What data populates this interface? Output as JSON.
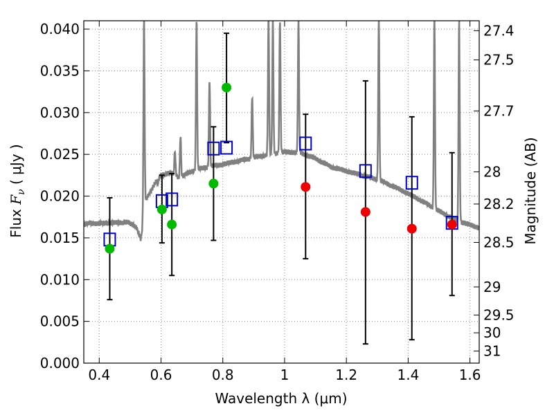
{
  "chart_data": {
    "type": "scatter",
    "xlabel": "Wavelength  λ (μm)",
    "ylabel_left_prefix": "Flux ",
    "ylabel_left_symbol": "F",
    "ylabel_left_sub": "ν",
    "ylabel_left_unit": " ( μJy )",
    "ylabel_right": "Magnitude (AB)",
    "xlim": [
      0.35,
      1.63
    ],
    "ylim": [
      0.0,
      0.041
    ],
    "grid": true,
    "x_ticks": [
      {
        "value": 0.4,
        "label": "0.4"
      },
      {
        "value": 0.6,
        "label": "0.6"
      },
      {
        "value": 0.8,
        "label": "0.8"
      },
      {
        "value": 1.0,
        "label": "1"
      },
      {
        "value": 1.2,
        "label": "1.2"
      },
      {
        "value": 1.4,
        "label": "1.4"
      },
      {
        "value": 1.6,
        "label": "1.6"
      }
    ],
    "y_ticks": [
      {
        "value": 0.0,
        "label": "0.000"
      },
      {
        "value": 0.005,
        "label": "0.005"
      },
      {
        "value": 0.01,
        "label": "0.010"
      },
      {
        "value": 0.015,
        "label": "0.015"
      },
      {
        "value": 0.02,
        "label": "0.020"
      },
      {
        "value": 0.025,
        "label": "0.025"
      },
      {
        "value": 0.03,
        "label": "0.030"
      },
      {
        "value": 0.035,
        "label": "0.035"
      },
      {
        "value": 0.04,
        "label": "0.040"
      }
    ],
    "mag_ticks": [
      {
        "mag": 27.4,
        "label": "27.4"
      },
      {
        "mag": 27.5,
        "label": "27.5"
      },
      {
        "mag": 27.7,
        "label": "27.7"
      },
      {
        "mag": 28.0,
        "label": "28"
      },
      {
        "mag": 28.2,
        "label": "28.2"
      },
      {
        "mag": 28.5,
        "label": "28.5"
      },
      {
        "mag": 29.0,
        "label": "29"
      },
      {
        "mag": 29.5,
        "label": "29.5"
      },
      {
        "mag": 30.0,
        "label": "30"
      },
      {
        "mag": 31.0,
        "label": "31"
      }
    ],
    "colors": {
      "spectrum": "#808080",
      "model": "#0000cc",
      "green": "#00bb00",
      "red": "#ee0000",
      "errorbar": "#000000",
      "grid": "#888888"
    },
    "spectrum": {
      "continuum": [
        [
          0.35,
          0.0165
        ],
        [
          0.37,
          0.0168
        ],
        [
          0.4,
          0.0167
        ],
        [
          0.43,
          0.0168
        ],
        [
          0.46,
          0.0168
        ],
        [
          0.49,
          0.0169
        ],
        [
          0.52,
          0.0163
        ],
        [
          0.535,
          0.0148
        ],
        [
          0.55,
          0.0195
        ],
        [
          0.58,
          0.0215
        ],
        [
          0.6,
          0.0225
        ],
        [
          0.63,
          0.0228
        ],
        [
          0.66,
          0.0222
        ],
        [
          0.7,
          0.023
        ],
        [
          0.75,
          0.0235
        ],
        [
          0.8,
          0.0238
        ],
        [
          0.85,
          0.0242
        ],
        [
          0.9,
          0.0246
        ],
        [
          0.95,
          0.025
        ],
        [
          1.0,
          0.0253
        ],
        [
          1.05,
          0.0252
        ],
        [
          1.1,
          0.0245
        ],
        [
          1.15,
          0.0235
        ],
        [
          1.2,
          0.023
        ],
        [
          1.25,
          0.0225
        ],
        [
          1.3,
          0.022
        ],
        [
          1.35,
          0.0212
        ],
        [
          1.4,
          0.0203
        ],
        [
          1.45,
          0.0193
        ],
        [
          1.5,
          0.0182
        ],
        [
          1.55,
          0.0172
        ],
        [
          1.58,
          0.0168
        ],
        [
          1.63,
          0.0162
        ]
      ],
      "lines": [
        {
          "x": 0.545,
          "peak": 0.0412
        },
        {
          "x": 0.59,
          "peak": 0.0215
        },
        {
          "x": 0.645,
          "peak": 0.0255
        },
        {
          "x": 0.663,
          "peak": 0.0272
        },
        {
          "x": 0.715,
          "peak": 0.0412
        },
        {
          "x": 0.757,
          "peak": 0.034
        },
        {
          "x": 0.895,
          "peak": 0.032
        },
        {
          "x": 0.948,
          "peak": 0.0412
        },
        {
          "x": 0.962,
          "peak": 0.0412
        },
        {
          "x": 0.985,
          "peak": 0.0412
        },
        {
          "x": 1.045,
          "peak": 0.0412
        },
        {
          "x": 1.305,
          "peak": 0.0412
        },
        {
          "x": 1.485,
          "peak": 0.0412
        },
        {
          "x": 1.565,
          "peak": 0.0412
        }
      ]
    },
    "model_squares": [
      {
        "x": 0.434,
        "y": 0.0148
      },
      {
        "x": 0.603,
        "y": 0.0194
      },
      {
        "x": 0.635,
        "y": 0.0196
      },
      {
        "x": 0.77,
        "y": 0.0257
      },
      {
        "x": 0.812,
        "y": 0.0258
      },
      {
        "x": 1.068,
        "y": 0.0263
      },
      {
        "x": 1.262,
        "y": 0.023
      },
      {
        "x": 1.412,
        "y": 0.0216
      },
      {
        "x": 1.542,
        "y": 0.0168
      }
    ],
    "observed_green": [
      {
        "x": 0.434,
        "y": 0.0137,
        "ylo": 0.0076,
        "yhi": 0.0198
      },
      {
        "x": 0.603,
        "y": 0.0184,
        "ylo": 0.0144,
        "yhi": 0.0225
      },
      {
        "x": 0.635,
        "y": 0.0166,
        "ylo": 0.0105,
        "yhi": 0.0227
      },
      {
        "x": 0.77,
        "y": 0.0215,
        "ylo": 0.0147,
        "yhi": 0.0283
      },
      {
        "x": 0.812,
        "y": 0.033,
        "ylo": 0.0264,
        "yhi": 0.0395
      }
    ],
    "observed_red": [
      {
        "x": 1.068,
        "y": 0.0211,
        "ylo": 0.0125,
        "yhi": 0.0298
      },
      {
        "x": 1.262,
        "y": 0.0181,
        "ylo": 0.0023,
        "yhi": 0.0338
      },
      {
        "x": 1.412,
        "y": 0.0161,
        "ylo": 0.0028,
        "yhi": 0.0295
      },
      {
        "x": 1.542,
        "y": 0.0166,
        "ylo": 0.0081,
        "yhi": 0.0252
      }
    ]
  }
}
